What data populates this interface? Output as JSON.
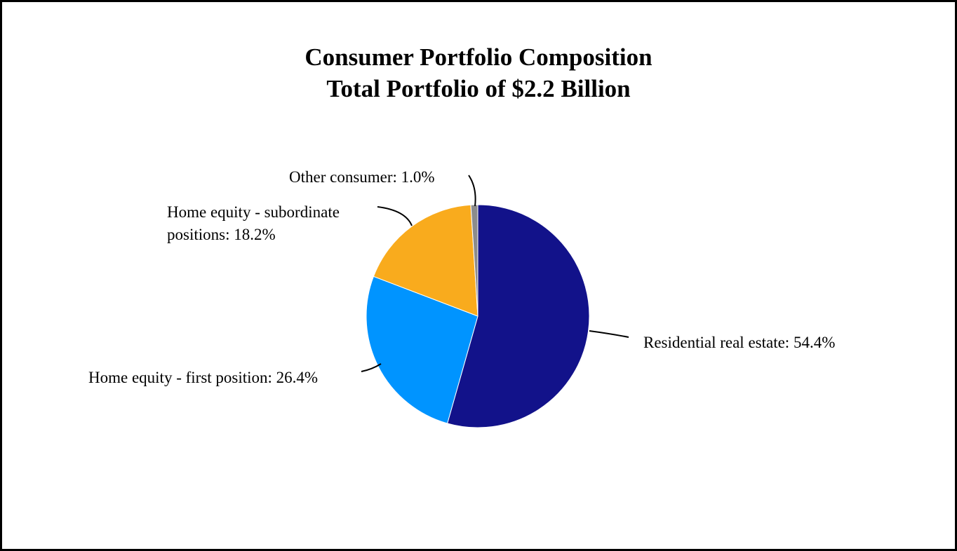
{
  "chart_data": {
    "type": "pie",
    "title": "Consumer Portfolio Composition",
    "subtitle": "Total Portfolio of $2.2 Billion",
    "start_angle_deg": 0,
    "direction": "clockwise",
    "slices": [
      {
        "label_lines": [
          "Residential real estate: 54.4%"
        ],
        "value": 54.4,
        "color": "#12128a"
      },
      {
        "label_lines": [
          "Home equity - first position: 26.4%"
        ],
        "value": 26.4,
        "color": "#0094ff"
      },
      {
        "label_lines": [
          "Home equity - subordinate",
          "positions: 18.2%"
        ],
        "value": 18.2,
        "color": "#f9ab1d"
      },
      {
        "label_lines": [
          "Other consumer: 1.0%"
        ],
        "value": 1.0,
        "color": "#8c8c8c"
      }
    ]
  }
}
